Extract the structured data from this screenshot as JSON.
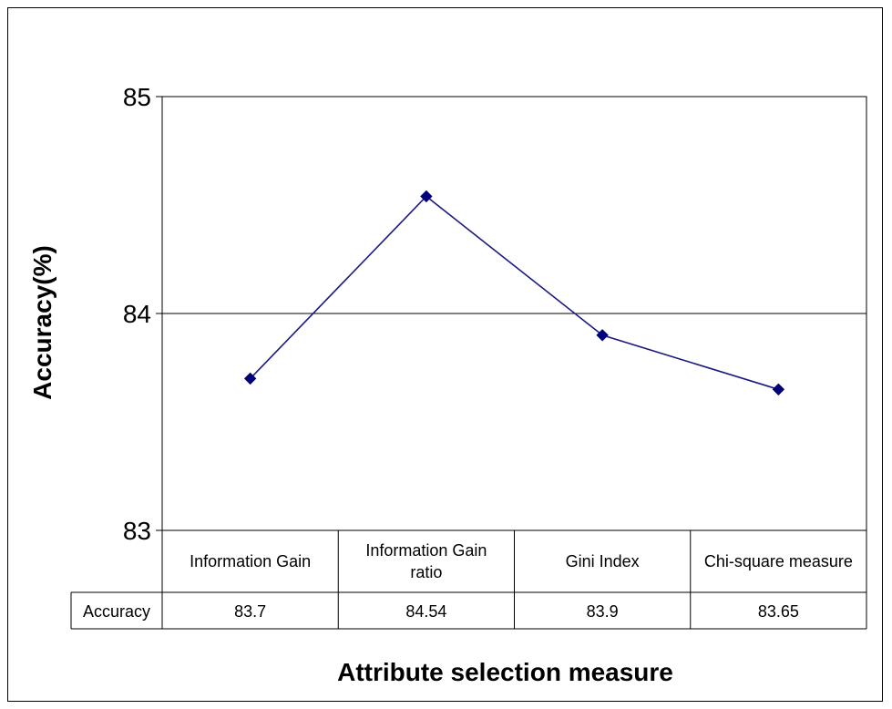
{
  "chart_data": {
    "type": "line",
    "categories": [
      "Information Gain",
      "Information Gain ratio",
      "Gini Index",
      "Chi-square measure"
    ],
    "series": [
      {
        "name": "Accuracy",
        "values": [
          83.7,
          84.54,
          83.9,
          83.65
        ],
        "labels": [
          "83.7",
          "84.54",
          "83.9",
          "83.65"
        ]
      }
    ],
    "title": "",
    "xlabel": "Attribute selection measure",
    "ylabel": "Accuracy(%)",
    "ylim": [
      83,
      85
    ],
    "yticks": [
      83,
      84,
      85
    ],
    "grid": true,
    "data_table": true,
    "line_color": "#1a1a80",
    "marker_color": "#00007a"
  }
}
